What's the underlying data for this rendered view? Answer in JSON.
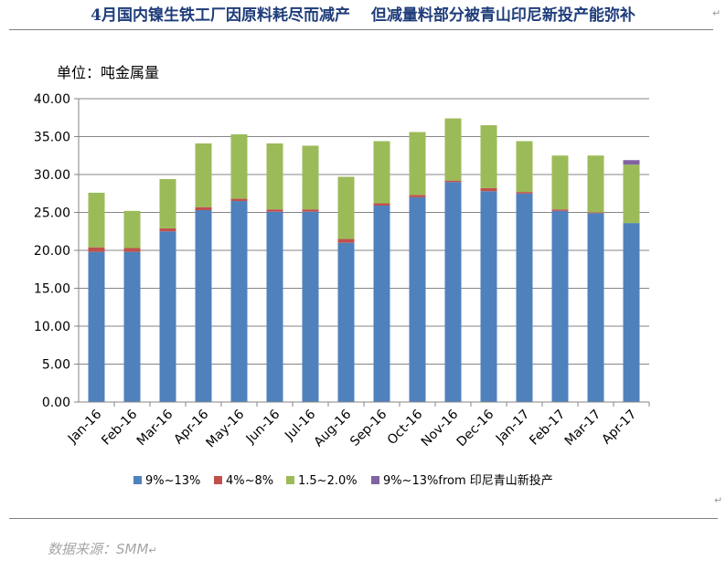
{
  "title": "4月国内镍生铁工厂因原料耗尽而减产　 但减量料部分被青山印尼新投产能弥补",
  "source": "数据来源：SMM",
  "paragraph_mark": "↵",
  "chart_data": {
    "type": "bar",
    "stacked": true,
    "unit_label": "单位：吨金属量",
    "categories": [
      "Jan-16",
      "Feb-16",
      "Mar-16",
      "Apr-16",
      "May-16",
      "Jun-16",
      "Jul-16",
      "Aug-16",
      "Sep-16",
      "Oct-16",
      "Nov-16",
      "Dec-16",
      "Jan-17",
      "Feb-17",
      "Mar-17",
      "Apr-17"
    ],
    "yticks": [
      "0.00",
      "5.00",
      "10.00",
      "15.00",
      "20.00",
      "25.00",
      "30.00",
      "35.00",
      "40.00"
    ],
    "ylim": [
      0,
      40
    ],
    "grid": true,
    "legend_position": "bottom",
    "series": [
      {
        "name": "9%~13%",
        "color": "#4f81bd",
        "values": [
          19.8,
          19.8,
          22.5,
          25.3,
          26.5,
          25.1,
          25.1,
          21.0,
          25.9,
          27.0,
          29.0,
          27.8,
          27.5,
          25.2,
          24.9,
          23.6
        ]
      },
      {
        "name": "4%~8%",
        "color": "#c0504d",
        "values": [
          0.6,
          0.5,
          0.4,
          0.4,
          0.3,
          0.3,
          0.3,
          0.5,
          0.3,
          0.3,
          0.2,
          0.4,
          0.2,
          0.2,
          0.1,
          0.0
        ]
      },
      {
        "name": "1.5~2.0%",
        "color": "#9bbb59",
        "values": [
          7.2,
          4.9,
          6.5,
          8.4,
          8.5,
          8.7,
          8.4,
          8.2,
          8.2,
          8.3,
          8.2,
          8.3,
          6.7,
          7.1,
          7.5,
          7.7
        ]
      },
      {
        "name": "9%~13%from 印尼青山新投产",
        "color": "#8064a2",
        "values": [
          0,
          0,
          0,
          0,
          0,
          0,
          0,
          0,
          0,
          0,
          0,
          0,
          0,
          0,
          0,
          0.6
        ]
      }
    ]
  }
}
